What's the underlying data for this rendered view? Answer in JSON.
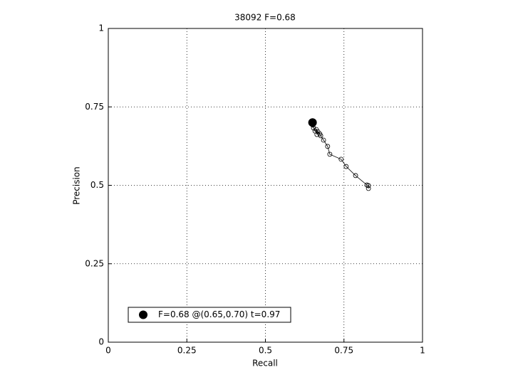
{
  "chart_data": {
    "type": "line",
    "title": "38092 F=0.68",
    "x_label": "Recall",
    "y_label": "Precision",
    "xlim": [
      0,
      1
    ],
    "ylim": [
      0,
      1
    ],
    "xticks": [
      0,
      0.25,
      0.5,
      0.75,
      1
    ],
    "yticks": [
      0,
      0.25,
      0.5,
      0.75,
      1
    ],
    "grid": true,
    "legend": "lower left",
    "series": [
      {
        "color": "#000000",
        "x": [
          0.828,
          0.828,
          0.823,
          0.787,
          0.757,
          0.741,
          0.705,
          0.698,
          0.685,
          0.676,
          0.673,
          0.667,
          0.664,
          0.662,
          0.658,
          0.653,
          0.651,
          0.651
        ],
        "y": [
          0.49,
          0.499,
          0.501,
          0.531,
          0.56,
          0.583,
          0.599,
          0.624,
          0.644,
          0.658,
          0.664,
          0.671,
          0.662,
          0.678,
          0.673,
          0.683,
          0.692,
          0.698
        ]
      },
      {
        "name": "F=0.68 @(0.65,0.70) t=0.97",
        "color": "#000000",
        "x": [
          0.65
        ],
        "y": [
          0.7
        ]
      }
    ]
  }
}
